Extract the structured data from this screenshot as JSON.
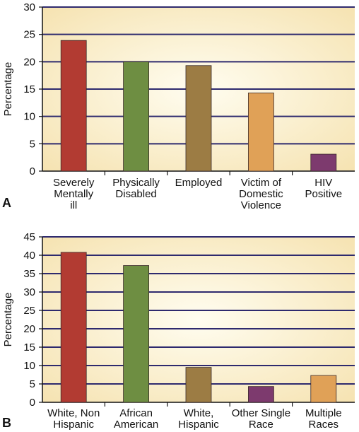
{
  "colors": {
    "bg_center": "#fffdf0",
    "bg_edge": "#f5e1ad",
    "gridline": "#2e2a6e",
    "axis": "#111111"
  },
  "chart_data": [
    {
      "panel_label": "A",
      "type": "bar",
      "ylabel": "Percentage",
      "ylim": [
        0,
        30
      ],
      "yticks": [
        0,
        5,
        10,
        15,
        20,
        25,
        30
      ],
      "grid": true,
      "categories": [
        [
          "Severely",
          "Mentally",
          "ill"
        ],
        [
          "Physically",
          "Disabled"
        ],
        [
          "Employed"
        ],
        [
          "Victim of",
          "Domestic",
          "Violence"
        ],
        [
          "HIV",
          "Positive"
        ]
      ],
      "values": [
        23.9,
        20,
        19.3,
        14.3,
        3.1
      ],
      "bar_colors": [
        "#b23b32",
        "#6e8e42",
        "#9c7c44",
        "#e0a157",
        "#7d3a6e"
      ]
    },
    {
      "panel_label": "B",
      "type": "bar",
      "ylabel": "Percentage",
      "ylim": [
        0,
        45
      ],
      "yticks": [
        0,
        5,
        10,
        15,
        20,
        25,
        30,
        35,
        40,
        45
      ],
      "grid": true,
      "categories": [
        [
          "White, Non",
          "Hispanic"
        ],
        [
          "African",
          "American"
        ],
        [
          "White,",
          "Hispanic"
        ],
        [
          "Other Single",
          "Race"
        ],
        [
          "Multiple",
          "Races"
        ]
      ],
      "values": [
        40.8,
        37.2,
        9.5,
        4.3,
        7.3
      ],
      "bar_colors": [
        "#b23b32",
        "#6e8e42",
        "#9c7c44",
        "#7d3a6e",
        "#e0a157"
      ]
    }
  ]
}
